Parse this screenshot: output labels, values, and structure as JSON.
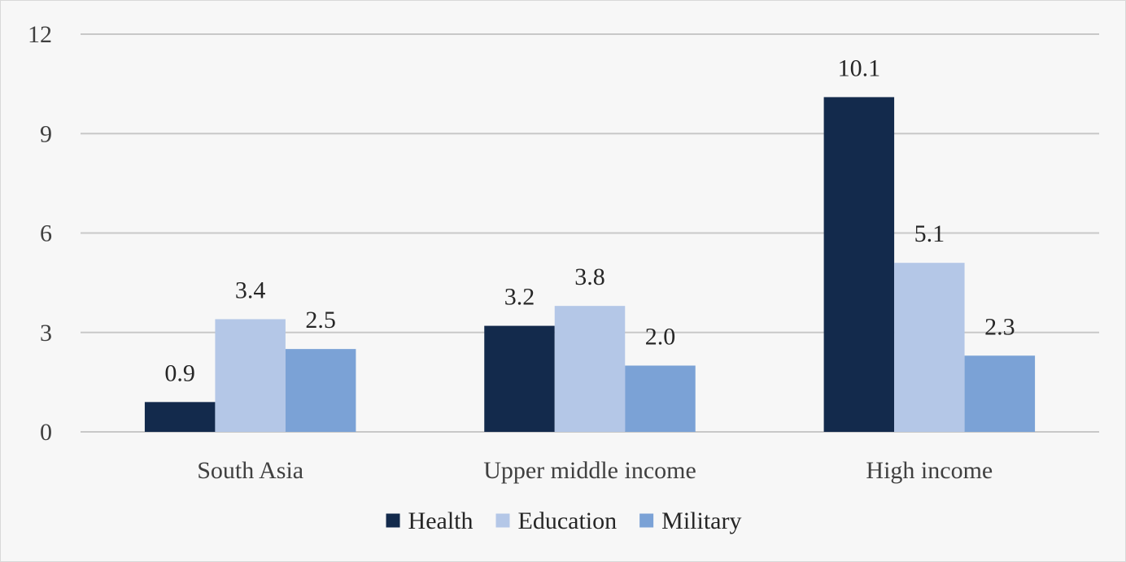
{
  "chart_data": {
    "type": "bar",
    "categories": [
      "South Asia",
      "Upper middle income",
      "High income"
    ],
    "series": [
      {
        "name": "Health",
        "values": [
          0.9,
          3.2,
          10.1
        ],
        "color": "#132a4c"
      },
      {
        "name": "Education",
        "values": [
          3.4,
          3.8,
          5.1
        ],
        "color": "#b4c7e7"
      },
      {
        "name": "Military",
        "values": [
          2.5,
          2.0,
          2.3
        ],
        "color": "#7ba2d6"
      }
    ],
    "title": "",
    "xlabel": "",
    "ylabel": "",
    "ylim": [
      0,
      12
    ],
    "yticks": [
      0,
      3,
      6,
      9,
      12
    ],
    "grid": true,
    "legend": "bottom",
    "value_labels": true,
    "gridline_color": "#c8c8c8",
    "background_color": "#f7f7f7"
  }
}
